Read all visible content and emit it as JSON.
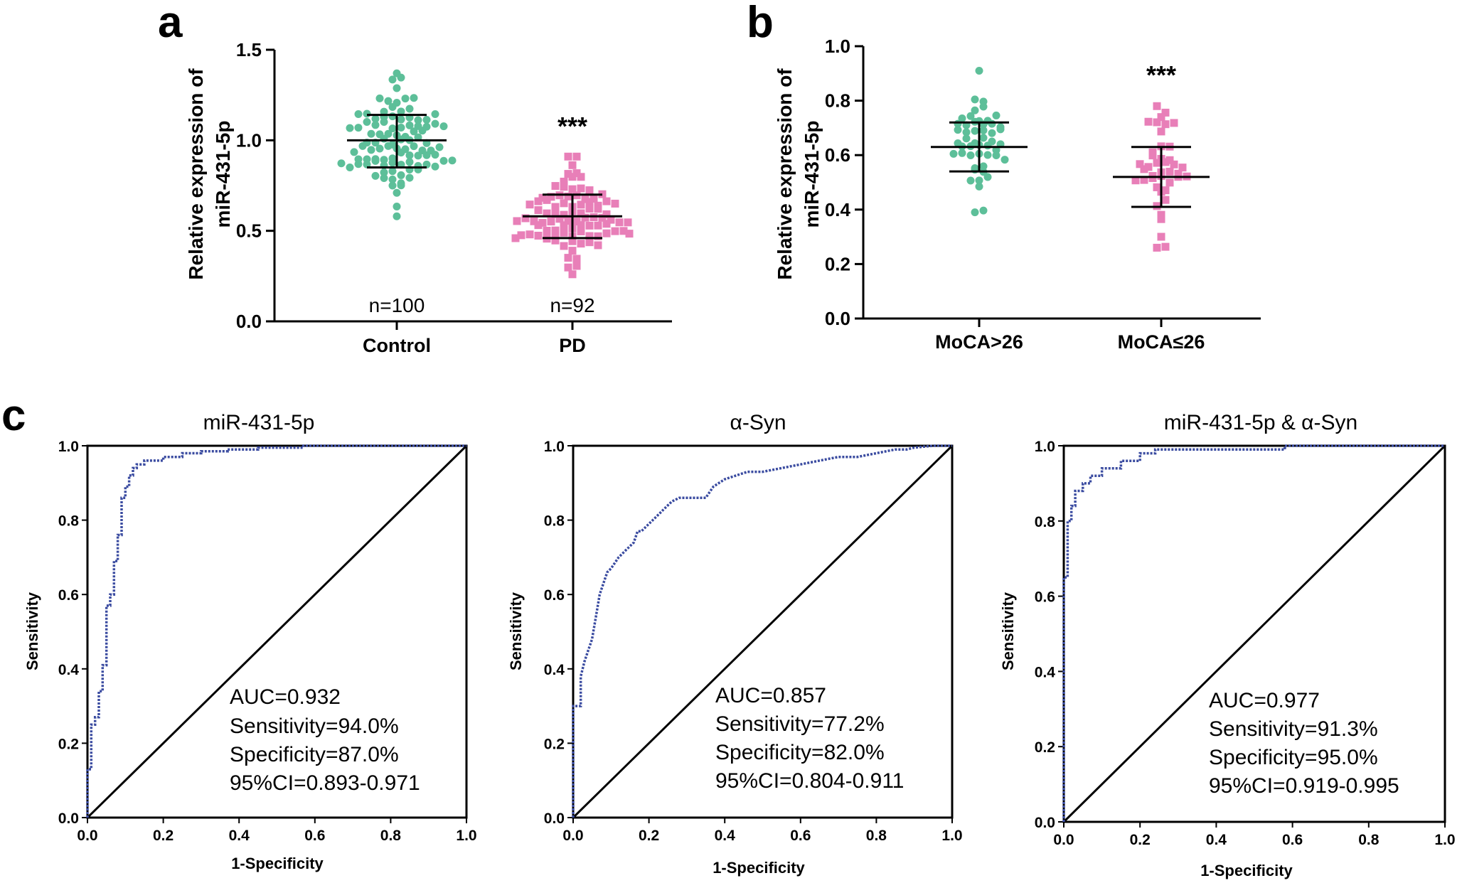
{
  "figure": {
    "panel_labels": [
      "a",
      "b",
      "c"
    ]
  },
  "chart_data": [
    {
      "id": "a",
      "type": "scatter",
      "subtype": "dot-plot with mean and SD",
      "ylabel_lines": [
        "Relative expression of",
        "miR-431-5p"
      ],
      "ylim": [
        0.0,
        1.5
      ],
      "yticks": [
        "0.0",
        "0.5",
        "1.0",
        "1.5"
      ],
      "categories": [
        "Control",
        "PD"
      ],
      "groups": [
        {
          "category": "Control",
          "n_label": "n=100",
          "n": 100,
          "mean": 1.0,
          "sd_low": 0.85,
          "sd_high": 1.14,
          "min": 0.58,
          "max": 1.37,
          "color": "#5dbf99",
          "marker": "circle"
        },
        {
          "category": "PD",
          "n_label": "n=92",
          "n": 92,
          "mean": 0.58,
          "sd_low": 0.46,
          "sd_high": 0.7,
          "min": 0.26,
          "max": 0.91,
          "color": "#e87fb8",
          "marker": "square",
          "significance": "***"
        }
      ]
    },
    {
      "id": "b",
      "type": "scatter",
      "subtype": "dot-plot with mean and SD",
      "ylabel_lines": [
        "Relative expression of",
        "miR-431-5p"
      ],
      "ylim": [
        0.0,
        1.0
      ],
      "yticks": [
        "0.0",
        "0.2",
        "0.4",
        "0.6",
        "0.8",
        "1.0"
      ],
      "categories": [
        "MoCA>26",
        "MoCA≤26"
      ],
      "groups": [
        {
          "category": "MoCA>26",
          "n": 50,
          "mean": 0.63,
          "sd_low": 0.54,
          "sd_high": 0.72,
          "min": 0.39,
          "max": 0.91,
          "color": "#5dbf99",
          "marker": "circle"
        },
        {
          "category": "MoCA≤26",
          "n": 42,
          "mean": 0.52,
          "sd_low": 0.41,
          "sd_high": 0.63,
          "min": 0.26,
          "max": 0.78,
          "color": "#e87fb8",
          "marker": "square",
          "significance": "***"
        }
      ]
    },
    {
      "id": "c1",
      "type": "line",
      "subtype": "ROC curve",
      "title": "miR-431-5p",
      "xlabel": "1-Specificity",
      "ylabel": "Sensitivity",
      "xlim": [
        0,
        1
      ],
      "ylim": [
        0,
        1
      ],
      "xticks": [
        "0.0",
        "0.2",
        "0.4",
        "0.6",
        "0.8",
        "1.0"
      ],
      "yticks": [
        "0.0",
        "0.2",
        "0.4",
        "0.6",
        "0.8",
        "1.0"
      ],
      "annotation": [
        "AUC=0.932",
        "Sensitivity=94.0%",
        "Specificity=87.0%",
        "95%CI=0.893-0.971"
      ],
      "curve_color": "#3a4ba0",
      "series": [
        {
          "x": [
            0,
            0,
            0.01,
            0.01,
            0.02,
            0.02,
            0.03,
            0.03,
            0.04,
            0.04,
            0.05,
            0.05,
            0.06,
            0.06,
            0.07,
            0.07,
            0.08,
            0.08,
            0.09,
            0.09,
            0.1,
            0.1,
            0.11,
            0.11,
            0.12,
            0.12,
            0.13,
            0.13,
            0.15,
            0.15,
            0.2,
            0.2,
            0.25,
            0.25,
            0.3,
            0.3,
            0.37,
            0.37,
            0.45,
            0.45,
            0.57,
            0.57,
            1.0
          ],
          "y": [
            0,
            0.13,
            0.13,
            0.25,
            0.25,
            0.27,
            0.27,
            0.34,
            0.34,
            0.41,
            0.41,
            0.57,
            0.57,
            0.6,
            0.6,
            0.69,
            0.69,
            0.76,
            0.76,
            0.86,
            0.86,
            0.89,
            0.89,
            0.92,
            0.92,
            0.94,
            0.94,
            0.95,
            0.95,
            0.96,
            0.96,
            0.97,
            0.97,
            0.98,
            0.98,
            0.985,
            0.985,
            0.99,
            0.99,
            0.995,
            0.995,
            1.0,
            1.0
          ]
        }
      ]
    },
    {
      "id": "c2",
      "type": "line",
      "subtype": "ROC curve",
      "title": "α-Syn",
      "xlabel": "1-Specificity",
      "ylabel": "Sensitivity",
      "xlim": [
        0,
        1
      ],
      "ylim": [
        0,
        1
      ],
      "xticks": [
        "0.0",
        "0.2",
        "0.4",
        "0.6",
        "0.8",
        "1.0"
      ],
      "yticks": [
        "0.0",
        "0.2",
        "0.4",
        "0.6",
        "0.8",
        "1.0"
      ],
      "annotation": [
        "AUC=0.857",
        "Sensitivity=77.2%",
        "Specificity=82.0%",
        "95%CI=0.804-0.911"
      ],
      "curve_color": "#3a4ba0",
      "series": [
        {
          "x": [
            0,
            0,
            0.02,
            0.02,
            0.03,
            0.04,
            0.05,
            0.06,
            0.07,
            0.08,
            0.09,
            0.1,
            0.12,
            0.14,
            0.16,
            0.17,
            0.18,
            0.2,
            0.22,
            0.24,
            0.26,
            0.28,
            0.3,
            0.33,
            0.35,
            0.37,
            0.4,
            0.43,
            0.46,
            0.5,
            0.55,
            0.6,
            0.65,
            0.7,
            0.75,
            0.8,
            0.85,
            0.88,
            0.9,
            0.95,
            1.0
          ],
          "y": [
            0,
            0.3,
            0.3,
            0.38,
            0.42,
            0.45,
            0.48,
            0.54,
            0.6,
            0.63,
            0.66,
            0.67,
            0.7,
            0.72,
            0.74,
            0.77,
            0.77,
            0.79,
            0.81,
            0.83,
            0.85,
            0.86,
            0.86,
            0.86,
            0.86,
            0.89,
            0.91,
            0.92,
            0.93,
            0.93,
            0.94,
            0.95,
            0.96,
            0.97,
            0.97,
            0.98,
            0.99,
            0.99,
            0.995,
            1.0,
            1.0
          ]
        }
      ]
    },
    {
      "id": "c3",
      "type": "line",
      "subtype": "ROC curve",
      "title": "miR-431-5p & α-Syn",
      "xlabel": "1-Specificity",
      "ylabel": "Sensitivity",
      "xlim": [
        0,
        1
      ],
      "ylim": [
        0,
        1
      ],
      "xticks": [
        "0.0",
        "0.2",
        "0.4",
        "0.6",
        "0.8",
        "1.0"
      ],
      "yticks": [
        "0.0",
        "0.2",
        "0.4",
        "0.6",
        "0.8",
        "1.0"
      ],
      "annotation": [
        "AUC=0.977",
        "Sensitivity=91.3%",
        "Specificity=95.0%",
        "95%CI=0.919-0.995"
      ],
      "curve_color": "#3a4ba0",
      "series": [
        {
          "x": [
            0,
            0,
            0.01,
            0.01,
            0.02,
            0.02,
            0.03,
            0.03,
            0.05,
            0.05,
            0.07,
            0.07,
            0.1,
            0.1,
            0.15,
            0.15,
            0.2,
            0.2,
            0.24,
            0.24,
            0.3,
            0.58,
            0.58,
            1.0
          ],
          "y": [
            0,
            0.65,
            0.65,
            0.8,
            0.8,
            0.84,
            0.84,
            0.88,
            0.88,
            0.9,
            0.9,
            0.92,
            0.92,
            0.94,
            0.94,
            0.96,
            0.96,
            0.98,
            0.98,
            0.99,
            0.99,
            0.99,
            1.0,
            1.0
          ]
        }
      ]
    }
  ]
}
